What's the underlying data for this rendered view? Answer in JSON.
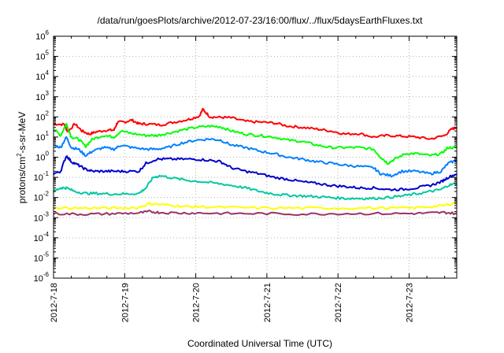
{
  "chart_data": {
    "type": "line",
    "title": "/data/run/goesPlots/archive/2012-07-23/16:00/flux/../flux/5daysEarthFluxes.txt",
    "xlabel": "Coordinated Universal Time (UTC)",
    "ylabel_parts": [
      "protons/cm",
      "2",
      "-s-sr-MeV"
    ],
    "yscale": "log",
    "ylim_exp": [
      -6,
      6
    ],
    "y_ticks": [
      {
        "base": "10",
        "exp": "-6",
        "value": -6
      },
      {
        "base": "10",
        "exp": "-5",
        "value": -5
      },
      {
        "base": "10",
        "exp": "-4",
        "value": -4
      },
      {
        "base": "10",
        "exp": "-3",
        "value": -3
      },
      {
        "base": "10",
        "exp": "-2",
        "value": -2
      },
      {
        "base": "10",
        "exp": "-1",
        "value": -1
      },
      {
        "base": "10",
        "exp": "0",
        "value": 0
      },
      {
        "base": "10",
        "exp": "1",
        "value": 1
      },
      {
        "base": "10",
        "exp": "2",
        "value": 2
      },
      {
        "base": "10",
        "exp": "3",
        "value": 3
      },
      {
        "base": "10",
        "exp": "4",
        "value": 4
      },
      {
        "base": "10",
        "exp": "5",
        "value": 5
      },
      {
        "base": "10",
        "exp": "6",
        "value": 6
      }
    ],
    "x_ticks": [
      {
        "label": "2012-7-18",
        "day": 0
      },
      {
        "label": "2012-7-19",
        "day": 1
      },
      {
        "label": "2012-7-20",
        "day": 2
      },
      {
        "label": "2012-7-21",
        "day": 3
      },
      {
        "label": "2012-7-22",
        "day": 4
      },
      {
        "label": "2012-7-23",
        "day": 5
      }
    ],
    "xlim_days": [
      0,
      5.67
    ],
    "grid": true,
    "series": [
      {
        "color": "#ff0000",
        "points": [
          [
            0,
            45
          ],
          [
            0.15,
            42
          ],
          [
            0.2,
            18
          ],
          [
            0.3,
            45
          ],
          [
            0.4,
            20
          ],
          [
            0.5,
            14
          ],
          [
            0.6,
            18
          ],
          [
            0.75,
            22
          ],
          [
            0.85,
            22
          ],
          [
            0.9,
            55
          ],
          [
            1.0,
            55
          ],
          [
            1.1,
            70
          ],
          [
            1.2,
            45
          ],
          [
            1.3,
            45
          ],
          [
            1.5,
            40
          ],
          [
            1.7,
            55
          ],
          [
            1.9,
            75
          ],
          [
            2.05,
            110
          ],
          [
            2.1,
            240
          ],
          [
            2.2,
            100
          ],
          [
            2.35,
            95
          ],
          [
            2.5,
            90
          ],
          [
            2.7,
            60
          ],
          [
            2.9,
            55
          ],
          [
            3.1,
            50
          ],
          [
            3.3,
            35
          ],
          [
            3.5,
            30
          ],
          [
            3.7,
            25
          ],
          [
            3.9,
            20
          ],
          [
            4.1,
            14
          ],
          [
            4.3,
            15
          ],
          [
            4.5,
            10
          ],
          [
            4.7,
            12
          ],
          [
            4.9,
            11
          ],
          [
            5.1,
            10
          ],
          [
            5.3,
            8
          ],
          [
            5.5,
            12
          ],
          [
            5.6,
            25
          ],
          [
            5.67,
            30
          ]
        ]
      },
      {
        "color": "#00ff00",
        "points": [
          [
            0,
            25
          ],
          [
            0.1,
            12
          ],
          [
            0.18,
            45
          ],
          [
            0.25,
            10
          ],
          [
            0.35,
            8
          ],
          [
            0.45,
            3.5
          ],
          [
            0.55,
            8
          ],
          [
            0.7,
            12
          ],
          [
            0.85,
            10
          ],
          [
            0.95,
            20
          ],
          [
            1.1,
            15
          ],
          [
            1.3,
            12
          ],
          [
            1.45,
            12
          ],
          [
            1.6,
            15
          ],
          [
            1.8,
            22
          ],
          [
            2.0,
            30
          ],
          [
            2.2,
            35
          ],
          [
            2.35,
            32
          ],
          [
            2.5,
            20
          ],
          [
            2.7,
            14
          ],
          [
            2.9,
            12
          ],
          [
            3.1,
            10
          ],
          [
            3.3,
            7
          ],
          [
            3.5,
            6
          ],
          [
            3.7,
            4
          ],
          [
            3.9,
            3
          ],
          [
            4.1,
            3
          ],
          [
            4.3,
            3
          ],
          [
            4.5,
            2.5
          ],
          [
            4.6,
            1
          ],
          [
            4.7,
            0.5
          ],
          [
            4.8,
            0.8
          ],
          [
            4.95,
            1.5
          ],
          [
            5.1,
            1.5
          ],
          [
            5.3,
            1.2
          ],
          [
            5.45,
            1.5
          ],
          [
            5.55,
            3
          ],
          [
            5.67,
            3
          ]
        ]
      },
      {
        "color": "#0080ff",
        "points": [
          [
            0,
            4
          ],
          [
            0.1,
            3
          ],
          [
            0.18,
            10
          ],
          [
            0.25,
            3
          ],
          [
            0.35,
            2.5
          ],
          [
            0.45,
            1.2
          ],
          [
            0.55,
            2
          ],
          [
            0.7,
            3
          ],
          [
            0.85,
            2.5
          ],
          [
            0.95,
            4
          ],
          [
            1.1,
            3
          ],
          [
            1.3,
            2.5
          ],
          [
            1.45,
            2.5
          ],
          [
            1.6,
            3
          ],
          [
            1.8,
            5
          ],
          [
            2.0,
            7
          ],
          [
            2.2,
            8
          ],
          [
            2.35,
            7
          ],
          [
            2.5,
            4
          ],
          [
            2.7,
            3
          ],
          [
            2.9,
            2
          ],
          [
            3.1,
            1.5
          ],
          [
            3.3,
            1
          ],
          [
            3.5,
            0.8
          ],
          [
            3.7,
            0.6
          ],
          [
            3.9,
            0.5
          ],
          [
            4.1,
            0.4
          ],
          [
            4.3,
            0.35
          ],
          [
            4.5,
            0.3
          ],
          [
            4.6,
            0.15
          ],
          [
            4.75,
            0.12
          ],
          [
            4.9,
            0.2
          ],
          [
            5.1,
            0.2
          ],
          [
            5.3,
            0.15
          ],
          [
            5.45,
            0.2
          ],
          [
            5.55,
            0.5
          ],
          [
            5.67,
            0.7
          ]
        ]
      },
      {
        "color": "#0000cc",
        "points": [
          [
            0,
            0.15
          ],
          [
            0.1,
            0.2
          ],
          [
            0.18,
            1.2
          ],
          [
            0.25,
            0.6
          ],
          [
            0.35,
            0.4
          ],
          [
            0.45,
            0.25
          ],
          [
            0.55,
            0.2
          ],
          [
            0.7,
            0.2
          ],
          [
            0.85,
            0.2
          ],
          [
            1.0,
            0.2
          ],
          [
            1.2,
            0.2
          ],
          [
            1.3,
            0.5
          ],
          [
            1.45,
            0.8
          ],
          [
            1.6,
            0.8
          ],
          [
            1.8,
            0.8
          ],
          [
            2.0,
            0.8
          ],
          [
            2.2,
            0.7
          ],
          [
            2.35,
            0.6
          ],
          [
            2.5,
            0.3
          ],
          [
            2.7,
            0.2
          ],
          [
            2.9,
            0.15
          ],
          [
            3.1,
            0.1
          ],
          [
            3.3,
            0.08
          ],
          [
            3.5,
            0.06
          ],
          [
            3.7,
            0.05
          ],
          [
            3.9,
            0.04
          ],
          [
            4.1,
            0.035
          ],
          [
            4.3,
            0.03
          ],
          [
            4.5,
            0.03
          ],
          [
            4.7,
            0.025
          ],
          [
            4.9,
            0.025
          ],
          [
            5.1,
            0.03
          ],
          [
            5.3,
            0.04
          ],
          [
            5.45,
            0.06
          ],
          [
            5.55,
            0.1
          ],
          [
            5.67,
            0.15
          ]
        ]
      },
      {
        "color": "#00c8a0",
        "points": [
          [
            0,
            0.02
          ],
          [
            0.1,
            0.03
          ],
          [
            0.18,
            0.03
          ],
          [
            0.3,
            0.02
          ],
          [
            0.45,
            0.016
          ],
          [
            0.6,
            0.016
          ],
          [
            0.8,
            0.015
          ],
          [
            1.0,
            0.015
          ],
          [
            1.2,
            0.016
          ],
          [
            1.3,
            0.03
          ],
          [
            1.4,
            0.1
          ],
          [
            1.5,
            0.12
          ],
          [
            1.7,
            0.09
          ],
          [
            1.9,
            0.07
          ],
          [
            2.1,
            0.06
          ],
          [
            2.3,
            0.05
          ],
          [
            2.5,
            0.04
          ],
          [
            2.7,
            0.03
          ],
          [
            2.9,
            0.02
          ],
          [
            3.1,
            0.015
          ],
          [
            3.3,
            0.013
          ],
          [
            3.5,
            0.012
          ],
          [
            3.7,
            0.011
          ],
          [
            3.9,
            0.01
          ],
          [
            4.1,
            0.009
          ],
          [
            4.3,
            0.009
          ],
          [
            4.5,
            0.009
          ],
          [
            4.7,
            0.01
          ],
          [
            4.9,
            0.012
          ],
          [
            5.1,
            0.015
          ],
          [
            5.3,
            0.02
          ],
          [
            5.45,
            0.025
          ],
          [
            5.55,
            0.04
          ],
          [
            5.67,
            0.05
          ]
        ]
      },
      {
        "color": "#ffff00",
        "points": [
          [
            0,
            0.003
          ],
          [
            0.3,
            0.003
          ],
          [
            0.6,
            0.003
          ],
          [
            0.9,
            0.003
          ],
          [
            1.2,
            0.0032
          ],
          [
            1.35,
            0.005
          ],
          [
            1.5,
            0.0045
          ],
          [
            1.7,
            0.004
          ],
          [
            1.9,
            0.0035
          ],
          [
            2.1,
            0.0035
          ],
          [
            2.5,
            0.0032
          ],
          [
            3.0,
            0.003
          ],
          [
            3.5,
            0.003
          ],
          [
            4.0,
            0.003
          ],
          [
            4.5,
            0.003
          ],
          [
            5.0,
            0.003
          ],
          [
            5.3,
            0.0035
          ],
          [
            5.5,
            0.004
          ],
          [
            5.67,
            0.006
          ]
        ]
      },
      {
        "color": "#993366",
        "points": [
          [
            0,
            0.0016
          ],
          [
            0.3,
            0.0015
          ],
          [
            0.6,
            0.0015
          ],
          [
            0.9,
            0.0016
          ],
          [
            1.2,
            0.0017
          ],
          [
            1.35,
            0.002
          ],
          [
            1.5,
            0.0018
          ],
          [
            1.8,
            0.0017
          ],
          [
            2.1,
            0.0017
          ],
          [
            2.5,
            0.0016
          ],
          [
            3.0,
            0.0016
          ],
          [
            3.5,
            0.0015
          ],
          [
            4.0,
            0.0016
          ],
          [
            4.5,
            0.0016
          ],
          [
            5.0,
            0.0016
          ],
          [
            5.3,
            0.0017
          ],
          [
            5.5,
            0.0018
          ],
          [
            5.67,
            0.0016
          ]
        ]
      }
    ]
  }
}
